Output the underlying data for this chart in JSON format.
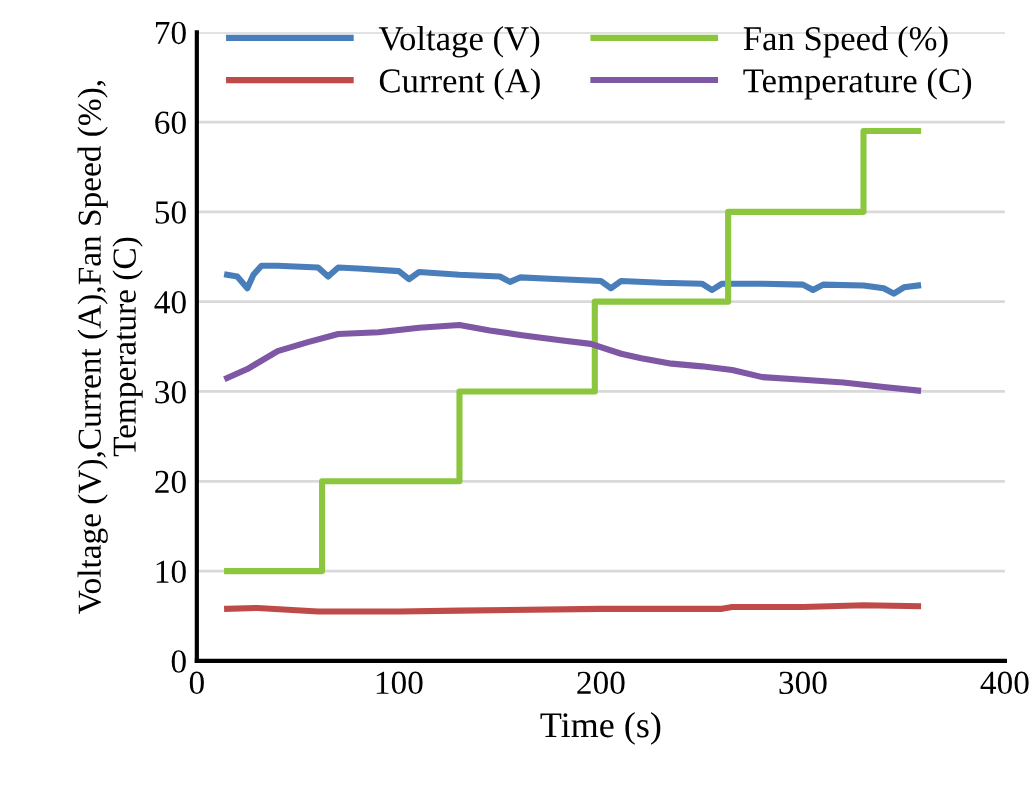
{
  "chart_data": {
    "type": "line",
    "xlabel": "Time (s)",
    "ylabel": "Voltage (V),Current (A),Fan Speed (%), Temperature (C)",
    "xlim": [
      0,
      400
    ],
    "xticks": [
      0,
      100,
      200,
      300,
      400
    ],
    "ylim": [
      0,
      70
    ],
    "yticks": [
      0,
      10,
      20,
      30,
      40,
      50,
      60,
      70
    ],
    "grid": "y",
    "legend": "top",
    "marker": "none",
    "line_style": "solid",
    "series": [
      {
        "name": "Voltage (V)",
        "color": "#4a7ebb",
        "x": [
          15,
          20,
          25,
          28,
          32,
          40,
          60,
          65,
          70,
          80,
          100,
          105,
          110,
          130,
          150,
          155,
          160,
          180,
          200,
          205,
          210,
          230,
          250,
          255,
          260,
          280,
          300,
          305,
          310,
          330,
          340,
          345,
          350,
          357
        ],
        "values": [
          43,
          42.8,
          41.5,
          43,
          44,
          44,
          43.8,
          42.8,
          43.8,
          43.7,
          43.4,
          42.5,
          43.3,
          43,
          42.8,
          42.2,
          42.7,
          42.5,
          42.3,
          41.5,
          42.3,
          42.1,
          42,
          41.3,
          42,
          42,
          41.9,
          41.3,
          41.9,
          41.8,
          41.5,
          40.9,
          41.6,
          41.8
        ]
      },
      {
        "name": "Current (A)",
        "color": "#be4b48",
        "x": [
          15,
          30,
          60,
          100,
          130,
          200,
          260,
          265,
          300,
          330,
          357
        ],
        "values": [
          5.8,
          5.9,
          5.5,
          5.5,
          5.6,
          5.8,
          5.8,
          6.0,
          6.0,
          6.2,
          6.1
        ]
      },
      {
        "name": "Fan Speed (%)",
        "color": "#8cc63f",
        "x": [
          15,
          62,
          62,
          130,
          130,
          197,
          197,
          263,
          263,
          330,
          330,
          357
        ],
        "values": [
          10,
          10,
          20,
          20,
          30,
          30,
          40,
          40,
          50,
          50,
          59,
          59
        ]
      },
      {
        "name": "Temperature (C)",
        "color": "#7e57a5",
        "x": [
          15,
          25,
          40,
          55,
          70,
          90,
          110,
          130,
          145,
          160,
          180,
          195,
          210,
          220,
          235,
          250,
          265,
          280,
          300,
          320,
          340,
          357
        ],
        "values": [
          31.5,
          32.5,
          34.5,
          35.5,
          36.4,
          36.6,
          37.1,
          37.4,
          36.8,
          36.3,
          35.7,
          35.3,
          34.2,
          33.7,
          33.1,
          32.8,
          32.4,
          31.6,
          31.3,
          31,
          30.5,
          30.1
        ]
      }
    ]
  }
}
